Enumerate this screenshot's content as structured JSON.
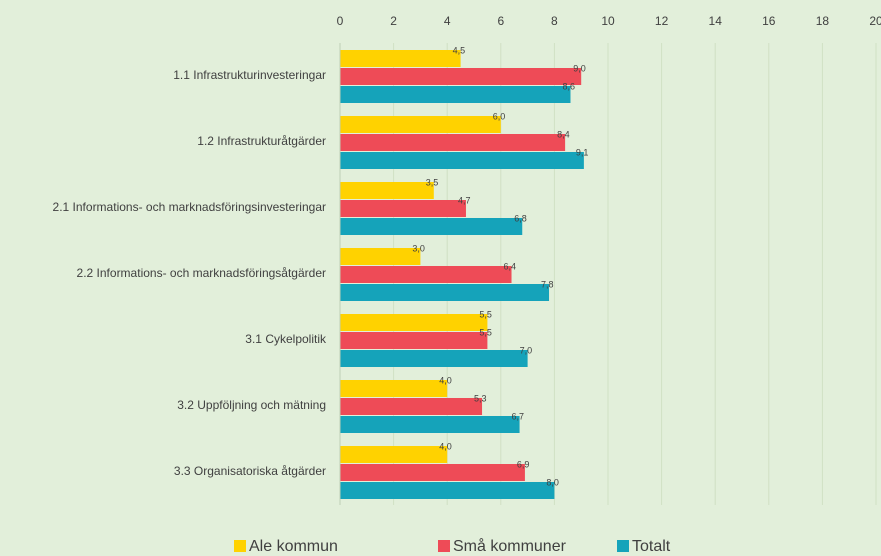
{
  "chart_data": {
    "type": "barh",
    "categories": [
      "1.1 Infrastrukturinvesteringar",
      "1.2 Infrastrukturåtgärder",
      "2.1 Informations- och marknadsföringsinvesteringar",
      "2.2 Informations- och marknadsföringsåtgärder",
      "3.1 Cykelpolitik",
      "3.2 Uppföljning och mätning",
      "3.3 Organisatoriska åtgärder"
    ],
    "series": [
      {
        "name": "Ale kommun",
        "color": "#ffd200",
        "values": [
          4.5,
          6.0,
          3.5,
          3.0,
          5.5,
          4.0,
          4.0
        ],
        "value_labels": [
          "4,5",
          "6,0",
          "3,5",
          "3,0",
          "5,5",
          "4,0",
          "4,0"
        ]
      },
      {
        "name": "Små kommuner",
        "color": "#ee4b57",
        "values": [
          9.0,
          8.4,
          4.7,
          6.4,
          5.5,
          5.3,
          6.9
        ],
        "value_labels": [
          "9,0",
          "8,4",
          "4,7",
          "6,4",
          "5,5",
          "5,3",
          "6,9"
        ]
      },
      {
        "name": "Totalt",
        "color": "#15a3ba",
        "values": [
          8.6,
          9.1,
          6.8,
          7.8,
          7.0,
          6.7,
          8.0
        ],
        "value_labels": [
          "8,6",
          "9,1",
          "6,8",
          "7,8",
          "7,0",
          "6,7",
          "8,0"
        ]
      }
    ],
    "xlim": [
      0,
      20
    ],
    "xticks": [
      0,
      2,
      4,
      6,
      8,
      10,
      12,
      14,
      16,
      18,
      20
    ],
    "grid": true,
    "legend": "bottom"
  }
}
